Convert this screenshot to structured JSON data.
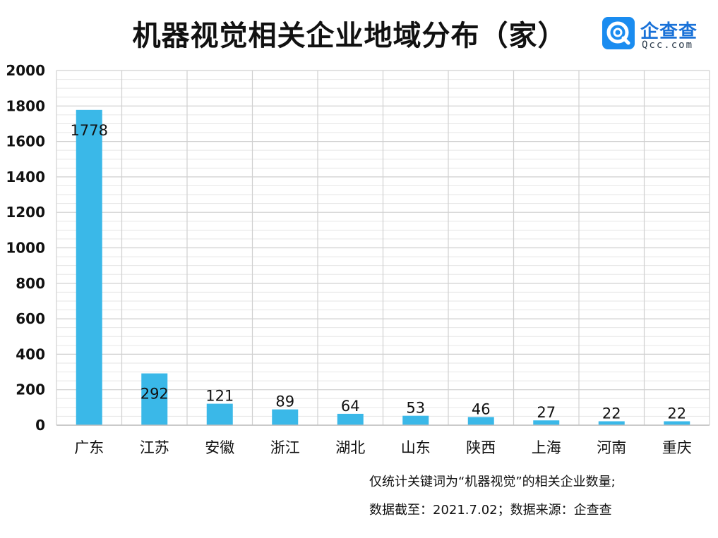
{
  "title": "机器视觉相关企业地域分布（家）",
  "logo": {
    "name": "企查查",
    "domain": "Qcc.com",
    "icon": "qcc-logo-icon",
    "color": "#1a8cf0"
  },
  "notes": [
    "仅统计关键词为“机器视觉”的相关企业数量;",
    "数据截至：2021.7.02；数据来源：企查查"
  ],
  "chart_data": {
    "type": "bar",
    "title": "机器视觉相关企业地域分布（家）",
    "categories": [
      "广东",
      "江苏",
      "安徽",
      "浙江",
      "湖北",
      "山东",
      "陕西",
      "上海",
      "河南",
      "重庆"
    ],
    "values": [
      1778,
      292,
      121,
      89,
      64,
      53,
      46,
      27,
      22,
      22
    ],
    "ylim": [
      0,
      2000
    ],
    "yticks": [
      0,
      200,
      400,
      600,
      800,
      1000,
      1200,
      1400,
      1600,
      1800,
      2000
    ],
    "grid": true,
    "bar_color": "#3ab8e8",
    "grid_color": "#d0d0d0"
  }
}
